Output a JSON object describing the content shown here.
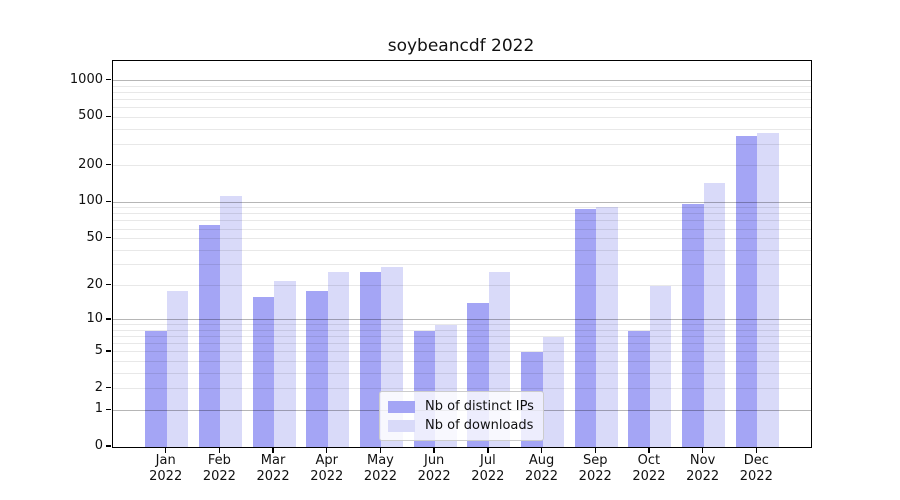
{
  "chart_data": {
    "type": "bar",
    "title": "soybeancdf 2022",
    "categories": [
      "Jan",
      "Feb",
      "Mar",
      "Apr",
      "May",
      "Jun",
      "Jul",
      "Aug",
      "Sep",
      "Oct",
      "Nov",
      "Dec"
    ],
    "year": "2022",
    "series": [
      {
        "name": "Nb of distinct IPs",
        "color": "#a4a5f5",
        "values": [
          8,
          65,
          16,
          18,
          26,
          8,
          14,
          5,
          88,
          8,
          97,
          350
        ]
      },
      {
        "name": "Nb of downloads",
        "color": "#d9daf9",
        "values": [
          18,
          112,
          22,
          26,
          29,
          9,
          26,
          7,
          92,
          20,
          145,
          370
        ]
      }
    ],
    "yscale": "log1p",
    "yticks": [
      0,
      1,
      2,
      5,
      10,
      20,
      50,
      100,
      200,
      500,
      1000
    ],
    "ylim": [
      0,
      1450
    ],
    "grid": true,
    "legend_position": "lower center",
    "colors": {
      "major_grid": "#b7b7b7",
      "minor_grid": "#e7e7e7",
      "axis": "#000000",
      "background": "#ffffff"
    }
  }
}
